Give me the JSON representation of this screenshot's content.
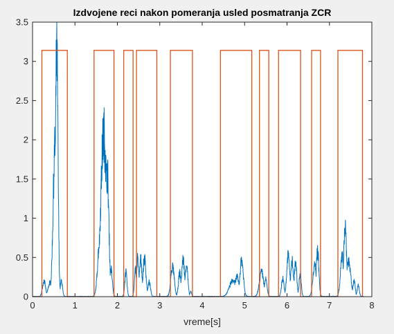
{
  "chart_data": {
    "type": "line",
    "title": "Izdvojene reci nakon pomeranja usled posmatranja ZCR",
    "xlabel": "vreme[s]",
    "ylabel": "",
    "xlim": [
      0,
      8
    ],
    "ylim": [
      0,
      3.5
    ],
    "xticks": [
      "0",
      "1",
      "2",
      "3",
      "4",
      "5",
      "6",
      "7",
      "8"
    ],
    "yticks": [
      "0",
      "0.5",
      "1",
      "1.5",
      "2",
      "2.5",
      "3",
      "3.5"
    ],
    "grid": false,
    "legend": "none",
    "background": "#ffffff",
    "figure_background": "#f0f0f0",
    "series": [
      {
        "color": "#0072bd",
        "kind": "signal",
        "baseline": 0.005,
        "noise": 0.18,
        "bursts": [
          {
            "center": 0.27,
            "width": 0.035,
            "peak": 0.2
          },
          {
            "center": 0.42,
            "width": 0.05,
            "peak": 0.18
          },
          {
            "center": 0.53,
            "width": 0.045,
            "peak": 1.9
          },
          {
            "center": 0.57,
            "width": 0.03,
            "peak": 3.13
          },
          {
            "center": 0.48,
            "width": 0.03,
            "peak": 0.6
          },
          {
            "center": 0.68,
            "width": 0.025,
            "peak": 0.2
          },
          {
            "center": 1.58,
            "width": 0.045,
            "peak": 0.7
          },
          {
            "center": 1.68,
            "width": 0.07,
            "peak": 2.08
          },
          {
            "center": 1.76,
            "width": 0.04,
            "peak": 1.6
          },
          {
            "center": 1.85,
            "width": 0.03,
            "peak": 0.35
          },
          {
            "center": 2.2,
            "width": 0.025,
            "peak": 0.31
          },
          {
            "center": 2.43,
            "width": 0.025,
            "peak": 0.35
          },
          {
            "center": 2.48,
            "width": 0.025,
            "peak": 0.49
          },
          {
            "center": 2.55,
            "width": 0.03,
            "peak": 0.47
          },
          {
            "center": 2.64,
            "width": 0.035,
            "peak": 0.48
          },
          {
            "center": 2.75,
            "width": 0.03,
            "peak": 0.18
          },
          {
            "center": 3.3,
            "width": 0.04,
            "peak": 0.38
          },
          {
            "center": 3.47,
            "width": 0.03,
            "peak": 0.3
          },
          {
            "center": 3.55,
            "width": 0.035,
            "peak": 0.47
          },
          {
            "center": 3.63,
            "width": 0.03,
            "peak": 0.42
          },
          {
            "center": 3.73,
            "width": 0.02,
            "peak": 0.06
          },
          {
            "center": 4.72,
            "width": 0.08,
            "peak": 0.2
          },
          {
            "center": 4.82,
            "width": 0.05,
            "peak": 0.25
          },
          {
            "center": 4.93,
            "width": 0.04,
            "peak": 0.46
          },
          {
            "center": 5.4,
            "width": 0.05,
            "peak": 0.31
          },
          {
            "center": 5.5,
            "width": 0.03,
            "peak": 0.22
          },
          {
            "center": 5.9,
            "width": 0.03,
            "peak": 0.23
          },
          {
            "center": 6.03,
            "width": 0.035,
            "peak": 0.53
          },
          {
            "center": 6.12,
            "width": 0.03,
            "peak": 0.46
          },
          {
            "center": 6.2,
            "width": 0.03,
            "peak": 0.42
          },
          {
            "center": 6.31,
            "width": 0.025,
            "peak": 0.3
          },
          {
            "center": 6.65,
            "width": 0.04,
            "peak": 0.4
          },
          {
            "center": 6.72,
            "width": 0.03,
            "peak": 0.58
          },
          {
            "center": 7.3,
            "width": 0.04,
            "peak": 0.5
          },
          {
            "center": 7.37,
            "width": 0.035,
            "peak": 0.9
          },
          {
            "center": 7.45,
            "width": 0.05,
            "peak": 0.45
          },
          {
            "center": 7.58,
            "width": 0.025,
            "peak": 0.22
          },
          {
            "center": 7.68,
            "width": 0.025,
            "peak": 0.14
          }
        ]
      },
      {
        "color": "#d95319",
        "kind": "step",
        "high": 3.14,
        "low": 0,
        "x_start": 0,
        "x_end": 7.78,
        "segments": [
          [
            0.22,
            0.82
          ],
          [
            1.45,
            1.92
          ],
          [
            2.15,
            2.37
          ],
          [
            2.45,
            2.93
          ],
          [
            3.25,
            3.77
          ],
          [
            4.43,
            5.17
          ],
          [
            5.35,
            5.57
          ],
          [
            5.8,
            6.32
          ],
          [
            6.58,
            6.79
          ],
          [
            7.2,
            7.78
          ]
        ]
      }
    ]
  }
}
